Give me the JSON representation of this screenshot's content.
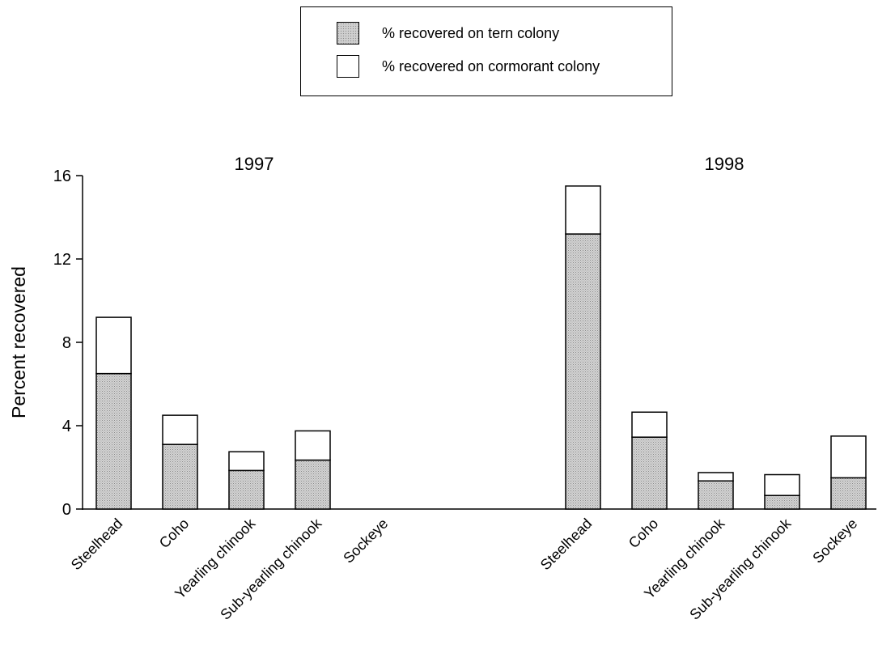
{
  "chart_data": {
    "type": "bar",
    "stacked": true,
    "ylabel": "Percent recovered",
    "ylim": [
      0,
      16
    ],
    "yticks": [
      0,
      4,
      8,
      12,
      16
    ],
    "grid": false,
    "legend_position": "top-center",
    "legend": [
      {
        "label": "% recovered on tern colony",
        "color": "#c8c8c8"
      },
      {
        "label": "% recovered on cormorant colony",
        "color": "#ffffff"
      }
    ],
    "groups": [
      {
        "title": "1997",
        "categories": [
          "Steelhead",
          "Coho",
          "Yearling chinook",
          "Sub-yearling chinook",
          "Sockeye"
        ],
        "series": [
          {
            "name": "% recovered on tern colony",
            "values": [
              6.5,
              3.1,
              1.85,
              2.35,
              0
            ]
          },
          {
            "name": "% recovered on cormorant colony",
            "values": [
              2.7,
              1.4,
              0.9,
              1.4,
              0
            ]
          }
        ]
      },
      {
        "title": "1998",
        "categories": [
          "Steelhead",
          "Coho",
          "Yearling chinook",
          "Sub-yearling chinook",
          "Sockeye"
        ],
        "series": [
          {
            "name": "% recovered on tern colony",
            "values": [
              13.2,
              3.45,
              1.35,
              0.65,
              1.5
            ]
          },
          {
            "name": "% recovered on cormorant colony",
            "values": [
              2.3,
              1.2,
              0.4,
              1.0,
              2.0
            ]
          }
        ]
      }
    ]
  }
}
